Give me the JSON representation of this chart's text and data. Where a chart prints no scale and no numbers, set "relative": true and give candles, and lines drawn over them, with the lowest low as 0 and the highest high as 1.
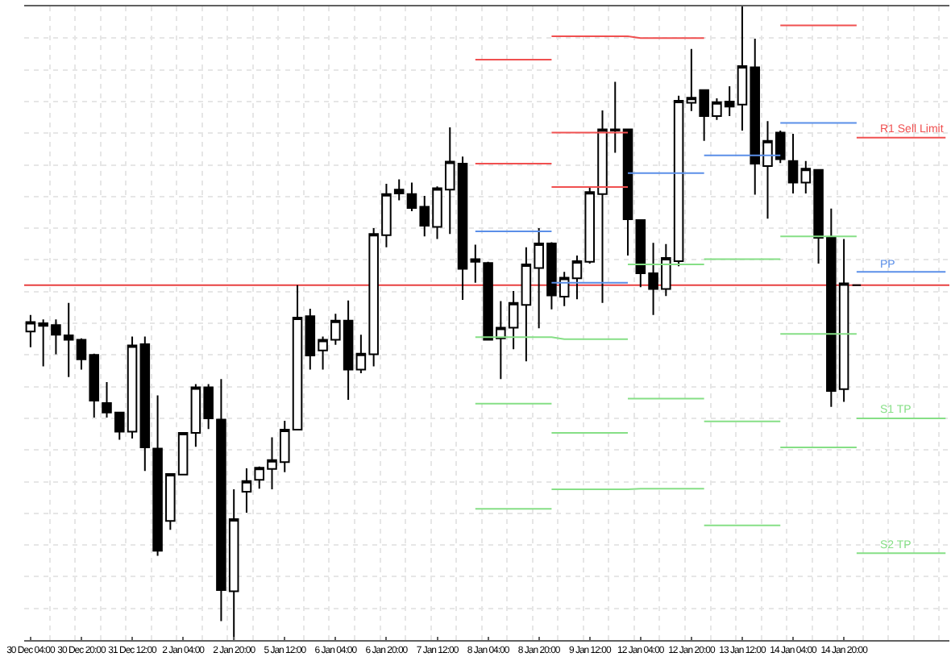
{
  "chart_data": {
    "type": "candlestick",
    "relative": true,
    "color": "#000000",
    "grid": true,
    "categories": [
      "30 Dec 04:00",
      null,
      null,
      null,
      "30 Dec 20:00",
      null,
      null,
      null,
      "31 Dec 12:00",
      null,
      null,
      null,
      "2 Jan 04:00",
      null,
      null,
      null,
      "2 Jan 20:00",
      null,
      null,
      null,
      "5 Jan 12:00",
      null,
      null,
      null,
      "6 Jan 04:00",
      null,
      null,
      null,
      "6 Jan 20:00",
      null,
      null,
      null,
      "7 Jan 12:00",
      null,
      null,
      null,
      "8 Jan 04:00",
      null,
      null,
      null,
      "8 Jan 20:00",
      null,
      null,
      null,
      "9 Jan 12:00",
      null,
      null,
      null,
      "12 Jan 04:00",
      null,
      null,
      null,
      "12 Jan 20:00",
      null,
      null,
      null,
      "13 Jan 12:00",
      null,
      null,
      null,
      "14 Jan 04:00",
      null,
      null,
      null,
      "14 Jan 20:00",
      null,
      null,
      null,
      null,
      null,
      null,
      null,
      null
    ],
    "ohlc": [
      [
        0.487,
        0.513,
        0.462,
        0.502
      ],
      [
        0.5,
        0.506,
        0.432,
        0.496
      ],
      [
        0.497,
        0.506,
        0.451,
        0.482
      ],
      [
        0.481,
        0.532,
        0.415,
        0.474
      ],
      [
        0.474,
        0.476,
        0.427,
        0.443
      ],
      [
        0.45,
        0.452,
        0.351,
        0.378
      ],
      [
        0.374,
        0.407,
        0.351,
        0.359
      ],
      [
        0.359,
        0.36,
        0.316,
        0.329
      ],
      [
        0.329,
        0.479,
        0.318,
        0.465
      ],
      [
        0.467,
        0.479,
        0.267,
        0.304
      ],
      [
        0.302,
        0.386,
        0.133,
        0.141
      ],
      [
        0.188,
        0.263,
        0.174,
        0.262
      ],
      [
        0.261,
        0.328,
        0.26,
        0.327
      ],
      [
        0.327,
        0.404,
        0.305,
        0.399
      ],
      [
        0.399,
        0.404,
        0.333,
        0.35
      ],
      [
        0.348,
        0.412,
        0.03,
        0.079
      ],
      [
        0.077,
        0.238,
        0,
        0.191
      ],
      [
        0.234,
        0.271,
        0.201,
        0.251
      ],
      [
        0.253,
        0.274,
        0.239,
        0.272
      ],
      [
        0.27,
        0.32,
        0.238,
        0.284
      ],
      [
        0.281,
        0.346,
        0.265,
        0.332
      ],
      [
        0.332,
        0.56,
        0.331,
        0.509
      ],
      [
        0.511,
        0.523,
        0.427,
        0.449
      ],
      [
        0.457,
        0.479,
        0.427,
        0.474
      ],
      [
        0.474,
        0.515,
        0.466,
        0.504
      ],
      [
        0.504,
        0.536,
        0.379,
        0.427
      ],
      [
        0.427,
        0.482,
        0.421,
        0.452
      ],
      [
        0.451,
        0.65,
        0.432,
        0.641
      ],
      [
        0.639,
        0.72,
        0.62,
        0.704
      ],
      [
        0.711,
        0.727,
        0.694,
        0.705
      ],
      [
        0.704,
        0.722,
        0.677,
        0.682
      ],
      [
        0.684,
        0.701,
        0.637,
        0.654
      ],
      [
        0.652,
        0.716,
        0.633,
        0.713
      ],
      [
        0.711,
        0.809,
        0.641,
        0.755
      ],
      [
        0.752,
        0.763,
        0.537,
        0.586
      ],
      [
        0.601,
        0.624,
        0.564,
        0.597
      ],
      [
        0.595,
        0.597,
        0.473,
        0.474
      ],
      [
        0.476,
        0.535,
        0.412,
        0.493
      ],
      [
        0.493,
        0.551,
        0.459,
        0.532
      ],
      [
        0.529,
        0.62,
        0.44,
        0.593
      ],
      [
        0.587,
        0.65,
        0.492,
        0.626
      ],
      [
        0.626,
        0.628,
        0.522,
        0.544
      ],
      [
        0.542,
        0.581,
        0.527,
        0.572
      ],
      [
        0.571,
        0.607,
        0.538,
        0.598
      ],
      [
        0.597,
        0.715,
        0.594,
        0.707
      ],
      [
        0.704,
        0.836,
        0.532,
        0.806
      ],
      [
        0.804,
        0.881,
        0.769,
        0.806
      ],
      [
        0.806,
        0.807,
        0.607,
        0.664
      ],
      [
        0.663,
        0.664,
        0.557,
        0.579
      ],
      [
        0.579,
        0.627,
        0.513,
        0.554
      ],
      [
        0.554,
        0.625,
        0.543,
        0.603
      ],
      [
        0.598,
        0.859,
        0.59,
        0.851
      ],
      [
        0.848,
        0.933,
        0.835,
        0.856
      ],
      [
        0.868,
        0.869,
        0.788,
        0.827
      ],
      [
        0.827,
        0.855,
        0.821,
        0.849
      ],
      [
        0.85,
        0.874,
        0.827,
        0.842
      ],
      [
        0.845,
        1,
        0.804,
        0.906
      ],
      [
        0.904,
        0.949,
        0.703,
        0.752
      ],
      [
        0.748,
        0.819,
        0.665,
        0.788
      ],
      [
        0.801,
        0.804,
        0.753,
        0.759
      ],
      [
        0.756,
        0.799,
        0.705,
        0.722
      ],
      [
        0.722,
        0.756,
        0.705,
        0.744
      ],
      [
        0.742,
        0.743,
        0.594,
        0.635
      ],
      [
        0.635,
        0.681,
        0.368,
        0.393
      ],
      [
        0.396,
        0.633,
        0.376,
        0.563
      ],
      [
        0.56,
        0.561,
        0.559,
        0.56
      ],
      null,
      null,
      null,
      null,
      null,
      null,
      null
    ],
    "series": [
      {
        "type": "line",
        "color": "#f05050",
        "values": [
          null,
          null,
          null,
          null,
          null,
          null,
          null,
          null,
          null,
          null,
          null,
          null,
          null,
          null,
          null,
          null,
          null,
          null,
          null,
          null,
          null,
          null,
          null,
          null,
          null,
          null,
          null,
          null,
          null,
          null,
          null,
          null,
          null,
          null,
          null,
          null,
          null,
          null,
          null,
          null,
          null,
          0.953,
          0.953,
          0.953,
          0.953,
          0.953,
          0.953,
          0.953,
          0.95,
          0.95,
          0.95,
          0.95,
          0.95,
          0.95,
          null,
          null,
          null,
          null,
          null,
          0.97,
          0.97,
          0.97,
          0.97,
          0.97,
          0.97,
          0.97,
          null,
          null,
          null,
          null,
          null,
          null,
          null
        ]
      },
      {
        "type": "line",
        "color": "#f05050",
        "values": [
          null,
          null,
          null,
          null,
          null,
          null,
          null,
          null,
          null,
          null,
          null,
          null,
          null,
          null,
          null,
          null,
          null,
          null,
          null,
          null,
          null,
          null,
          null,
          null,
          null,
          null,
          null,
          null,
          null,
          null,
          null,
          null,
          null,
          null,
          null,
          0.916,
          0.916,
          0.916,
          0.916,
          0.916,
          0.916,
          0.916,
          null,
          null,
          null,
          null,
          null,
          null,
          null,
          null,
          null,
          null,
          null,
          null,
          null,
          null,
          null,
          null,
          null,
          null,
          null,
          null,
          null,
          null,
          null,
          null,
          null,
          null,
          null,
          null,
          null,
          null,
          null
        ]
      },
      {
        "type": "line",
        "color": "#f05050",
        "values": [
          null,
          null,
          null,
          null,
          null,
          null,
          null,
          null,
          null,
          null,
          null,
          null,
          null,
          null,
          null,
          null,
          null,
          null,
          null,
          null,
          null,
          null,
          null,
          null,
          null,
          null,
          null,
          null,
          null,
          null,
          null,
          null,
          null,
          null,
          null,
          null,
          null,
          null,
          null,
          null,
          null,
          0.801,
          0.801,
          0.801,
          0.801,
          0.801,
          0.801,
          0.801,
          null,
          null,
          null,
          null,
          null,
          null,
          null,
          null,
          null,
          null,
          null,
          null,
          null,
          null,
          null,
          null,
          null,
          null,
          null,
          null,
          null,
          null,
          null,
          null,
          null
        ]
      },
      {
        "type": "line",
        "color": "#f05050",
        "values": [
          null,
          null,
          null,
          null,
          null,
          null,
          null,
          null,
          null,
          null,
          null,
          null,
          null,
          null,
          null,
          null,
          null,
          null,
          null,
          null,
          null,
          null,
          null,
          null,
          null,
          null,
          null,
          null,
          null,
          null,
          null,
          null,
          null,
          null,
          null,
          0.752,
          0.752,
          0.752,
          0.752,
          0.752,
          0.752,
          0.752,
          null,
          null,
          null,
          null,
          null,
          null,
          null,
          null,
          null,
          null,
          null,
          null,
          null,
          null,
          null,
          null,
          null,
          null,
          null,
          null,
          null,
          null,
          null,
          null,
          null,
          null,
          null,
          null,
          null,
          null,
          null
        ]
      },
      {
        "type": "line",
        "color": "#f05050",
        "values": [
          null,
          null,
          null,
          null,
          null,
          null,
          null,
          null,
          null,
          null,
          null,
          null,
          null,
          null,
          null,
          null,
          null,
          null,
          null,
          null,
          null,
          null,
          null,
          null,
          null,
          null,
          null,
          null,
          null,
          null,
          null,
          null,
          null,
          null,
          null,
          null,
          null,
          null,
          null,
          null,
          null,
          0.715,
          0.715,
          0.715,
          0.715,
          0.715,
          0.715,
          0.715,
          null,
          null,
          null,
          null,
          null,
          null,
          null,
          null,
          null,
          null,
          null,
          null,
          null,
          null,
          null,
          null,
          null,
          null,
          null,
          null,
          null,
          null,
          null,
          null,
          null
        ]
      },
      {
        "type": "line",
        "color": "#5b8fe8",
        "values": [
          null,
          null,
          null,
          null,
          null,
          null,
          null,
          null,
          null,
          null,
          null,
          null,
          null,
          null,
          null,
          null,
          null,
          null,
          null,
          null,
          null,
          null,
          null,
          null,
          null,
          null,
          null,
          null,
          null,
          null,
          null,
          null,
          null,
          null,
          null,
          0.645,
          0.645,
          0.645,
          0.645,
          0.645,
          0.645,
          0.645,
          null,
          null,
          null,
          null,
          null,
          0.737,
          0.737,
          0.737,
          0.737,
          0.737,
          0.737,
          0.737,
          null,
          null,
          null,
          null,
          null,
          0.816,
          0.816,
          0.816,
          0.816,
          0.816,
          0.816,
          0.816,
          null,
          null,
          null,
          null,
          null,
          null,
          null
        ]
      },
      {
        "type": "line",
        "color": "#5b8fe8",
        "values": [
          null,
          null,
          null,
          null,
          null,
          null,
          null,
          null,
          null,
          null,
          null,
          null,
          null,
          null,
          null,
          null,
          null,
          null,
          null,
          null,
          null,
          null,
          null,
          null,
          null,
          null,
          null,
          null,
          null,
          null,
          null,
          null,
          null,
          null,
          null,
          null,
          null,
          null,
          null,
          null,
          null,
          0.564,
          0.564,
          0.564,
          0.564,
          0.564,
          0.564,
          0.564,
          null,
          null,
          null,
          null,
          null,
          0.765,
          0.765,
          0.765,
          0.765,
          0.765,
          0.765,
          0.765,
          null,
          null,
          null,
          null,
          null,
          null,
          null,
          null,
          null,
          null,
          null,
          null,
          null
        ]
      },
      {
        "type": "line",
        "color": "#86df86",
        "values": [
          null,
          null,
          null,
          null,
          null,
          null,
          null,
          null,
          null,
          null,
          null,
          null,
          null,
          null,
          null,
          null,
          null,
          null,
          null,
          null,
          null,
          null,
          null,
          null,
          null,
          null,
          null,
          null,
          null,
          null,
          null,
          null,
          null,
          null,
          null,
          0.478,
          0.478,
          0.478,
          0.478,
          0.478,
          0.478,
          0.478,
          0.475,
          0.475,
          0.475,
          0.475,
          0.475,
          0.475,
          null,
          null,
          null,
          null,
          null,
          null,
          null,
          null,
          null,
          null,
          null,
          0.637,
          0.637,
          0.637,
          0.637,
          0.637,
          0.637,
          0.637,
          null,
          null,
          null,
          null,
          null,
          null,
          null
        ]
      },
      {
        "type": "line",
        "color": "#86df86",
        "values": [
          null,
          null,
          null,
          null,
          null,
          null,
          null,
          null,
          null,
          null,
          null,
          null,
          null,
          null,
          null,
          null,
          null,
          null,
          null,
          null,
          null,
          null,
          null,
          null,
          null,
          null,
          null,
          null,
          null,
          null,
          null,
          null,
          null,
          null,
          null,
          null,
          null,
          null,
          null,
          null,
          null,
          null,
          null,
          null,
          null,
          null,
          null,
          0.593,
          0.593,
          0.593,
          0.593,
          0.593,
          0.593,
          0.593,
          null,
          null,
          null,
          null,
          null,
          null,
          null,
          null,
          null,
          null,
          null,
          null,
          null,
          null,
          null,
          null,
          null,
          null,
          null
        ]
      },
      {
        "type": "line",
        "color": "#86df86",
        "values": [
          null,
          null,
          null,
          null,
          null,
          null,
          null,
          null,
          null,
          null,
          null,
          null,
          null,
          null,
          null,
          null,
          null,
          null,
          null,
          null,
          null,
          null,
          null,
          null,
          null,
          null,
          null,
          null,
          null,
          null,
          null,
          null,
          null,
          null,
          null,
          null,
          null,
          null,
          null,
          null,
          null,
          null,
          null,
          null,
          null,
          null,
          null,
          null,
          null,
          null,
          null,
          null,
          null,
          0.601,
          0.601,
          0.601,
          0.601,
          0.601,
          0.601,
          0.601,
          null,
          null,
          null,
          null,
          null,
          null,
          null,
          null,
          null,
          null,
          null,
          null,
          null
        ]
      },
      {
        "type": "line",
        "color": "#86df86",
        "values": [
          null,
          null,
          null,
          null,
          null,
          null,
          null,
          null,
          null,
          null,
          null,
          null,
          null,
          null,
          null,
          null,
          null,
          null,
          null,
          null,
          null,
          null,
          null,
          null,
          null,
          null,
          null,
          null,
          null,
          null,
          null,
          null,
          null,
          null,
          null,
          0.373,
          0.373,
          0.373,
          0.373,
          0.373,
          0.373,
          0.373,
          null,
          null,
          null,
          null,
          null,
          0.381,
          0.381,
          0.381,
          0.381,
          0.381,
          0.381,
          0.381,
          null,
          null,
          null,
          null,
          null,
          0.483,
          0.483,
          0.483,
          0.483,
          0.483,
          0.483,
          0.483,
          null,
          null,
          null,
          null,
          null,
          null,
          null
        ]
      },
      {
        "type": "line",
        "color": "#86df86",
        "values": [
          null,
          null,
          null,
          null,
          null,
          null,
          null,
          null,
          null,
          null,
          null,
          null,
          null,
          null,
          null,
          null,
          null,
          null,
          null,
          null,
          null,
          null,
          null,
          null,
          null,
          null,
          null,
          null,
          null,
          null,
          null,
          null,
          null,
          null,
          null,
          null,
          null,
          null,
          null,
          null,
          null,
          0.327,
          0.327,
          0.327,
          0.327,
          0.327,
          0.327,
          0.327,
          null,
          null,
          null,
          null,
          null,
          0.345,
          0.345,
          0.345,
          0.345,
          0.345,
          0.345,
          0.345,
          null,
          null,
          null,
          null,
          null,
          null,
          null,
          null,
          null,
          null,
          null,
          null,
          null
        ]
      },
      {
        "type": "line",
        "color": "#86df86",
        "values": [
          null,
          null,
          null,
          null,
          null,
          null,
          null,
          null,
          null,
          null,
          null,
          null,
          null,
          null,
          null,
          null,
          null,
          null,
          null,
          null,
          null,
          null,
          null,
          null,
          null,
          null,
          null,
          null,
          null,
          null,
          null,
          null,
          null,
          null,
          null,
          0.207,
          0.207,
          0.207,
          0.207,
          0.207,
          0.207,
          0.207,
          null,
          null,
          null,
          null,
          null,
          null,
          null,
          null,
          null,
          null,
          null,
          0.181,
          0.181,
          0.181,
          0.181,
          0.181,
          0.181,
          0.181,
          null,
          null,
          null,
          null,
          null,
          null,
          null,
          null,
          null,
          null,
          null,
          null,
          null
        ]
      },
      {
        "type": "line",
        "color": "#86df86",
        "values": [
          null,
          null,
          null,
          null,
          null,
          null,
          null,
          null,
          null,
          null,
          null,
          null,
          null,
          null,
          null,
          null,
          null,
          null,
          null,
          null,
          null,
          null,
          null,
          null,
          null,
          null,
          null,
          null,
          null,
          null,
          null,
          null,
          null,
          null,
          null,
          null,
          null,
          null,
          null,
          null,
          null,
          0.238,
          0.238,
          0.238,
          0.238,
          0.238,
          0.238,
          0.238,
          0.239,
          0.239,
          0.239,
          0.239,
          0.239,
          0.239,
          null,
          null,
          null,
          null,
          null,
          0.304,
          0.304,
          0.304,
          0.304,
          0.304,
          0.304,
          0.304,
          null,
          null,
          null,
          null,
          null,
          null,
          null
        ]
      },
      {
        "type": "line",
        "name": "R1 Sell Limit",
        "color": "#f05050",
        "values": [
          null,
          null,
          null,
          null,
          null,
          null,
          null,
          null,
          null,
          null,
          null,
          null,
          null,
          null,
          null,
          null,
          null,
          null,
          null,
          null,
          null,
          null,
          null,
          null,
          null,
          null,
          null,
          null,
          null,
          null,
          null,
          null,
          null,
          null,
          null,
          null,
          null,
          null,
          null,
          null,
          null,
          null,
          null,
          null,
          null,
          null,
          null,
          null,
          null,
          null,
          null,
          null,
          null,
          null,
          null,
          null,
          null,
          null,
          null,
          null,
          null,
          null,
          null,
          null,
          null,
          0.793,
          0.793,
          0.793,
          0.793,
          0.793,
          0.793,
          0.793,
          0.793
        ]
      },
      {
        "type": "line",
        "name": "PP",
        "color": "#5b8fe8",
        "values": [
          null,
          null,
          null,
          null,
          null,
          null,
          null,
          null,
          null,
          null,
          null,
          null,
          null,
          null,
          null,
          null,
          null,
          null,
          null,
          null,
          null,
          null,
          null,
          null,
          null,
          null,
          null,
          null,
          null,
          null,
          null,
          null,
          null,
          null,
          null,
          null,
          null,
          null,
          null,
          null,
          null,
          null,
          null,
          null,
          null,
          null,
          null,
          null,
          null,
          null,
          null,
          null,
          null,
          null,
          null,
          null,
          null,
          null,
          null,
          null,
          null,
          null,
          null,
          null,
          null,
          0.581,
          0.581,
          0.581,
          0.581,
          0.581,
          0.581,
          0.581,
          0.581
        ]
      },
      {
        "type": "line",
        "name": "S1 TP",
        "color": "#86df86",
        "values": [
          null,
          null,
          null,
          null,
          null,
          null,
          null,
          null,
          null,
          null,
          null,
          null,
          null,
          null,
          null,
          null,
          null,
          null,
          null,
          null,
          null,
          null,
          null,
          null,
          null,
          null,
          null,
          null,
          null,
          null,
          null,
          null,
          null,
          null,
          null,
          null,
          null,
          null,
          null,
          null,
          null,
          null,
          null,
          null,
          null,
          null,
          null,
          null,
          null,
          null,
          null,
          null,
          null,
          null,
          null,
          null,
          null,
          null,
          null,
          null,
          null,
          null,
          null,
          null,
          null,
          0.35,
          0.35,
          0.35,
          0.35,
          0.35,
          0.35,
          0.35,
          0.35
        ]
      },
      {
        "type": "line",
        "name": "S2 TP",
        "color": "#86df86",
        "values": [
          null,
          null,
          null,
          null,
          null,
          null,
          null,
          null,
          null,
          null,
          null,
          null,
          null,
          null,
          null,
          null,
          null,
          null,
          null,
          null,
          null,
          null,
          null,
          null,
          null,
          null,
          null,
          null,
          null,
          null,
          null,
          null,
          null,
          null,
          null,
          null,
          null,
          null,
          null,
          null,
          null,
          null,
          null,
          null,
          null,
          null,
          null,
          null,
          null,
          null,
          null,
          null,
          null,
          null,
          null,
          null,
          null,
          null,
          null,
          null,
          null,
          null,
          null,
          null,
          null,
          0.137,
          0.137,
          0.137,
          0.137,
          0.137,
          0.137,
          0.137,
          0.137
        ]
      }
    ],
    "ref_lines": [
      {
        "axis": "y",
        "value": 0.56,
        "color": "#e84040"
      }
    ]
  }
}
